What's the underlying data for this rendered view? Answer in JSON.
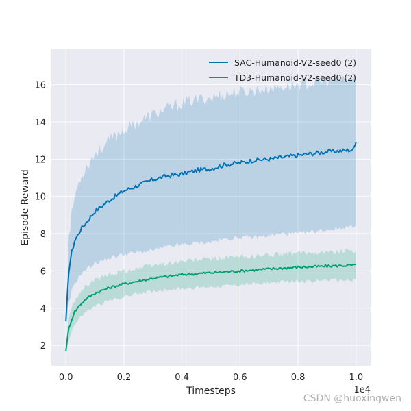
{
  "chart_data": {
    "type": "line",
    "title": "",
    "xlabel": "Timesteps",
    "ylabel": "Episode Reward",
    "x_offset_label": "1e4",
    "xlim": [
      -0.05,
      1.05
    ],
    "ylim": [
      0.9,
      17.9
    ],
    "xticks": [
      0.0,
      0.2,
      0.4,
      0.6,
      0.8,
      1.0
    ],
    "xtick_labels": [
      "0.0",
      "0.2",
      "0.4",
      "0.6",
      "0.8",
      "1.0"
    ],
    "yticks": [
      2,
      4,
      6,
      8,
      10,
      12,
      14,
      16
    ],
    "ytick_labels": [
      "2",
      "4",
      "6",
      "8",
      "10",
      "12",
      "14",
      "16"
    ],
    "grid": true,
    "legend_position": "top-right",
    "series": [
      {
        "name": "SAC-Humanoid-V2-seed0 (2)",
        "color": "#0072b2",
        "band_color": "#0072b2",
        "x": [
          0.0,
          0.01,
          0.02,
          0.03,
          0.05,
          0.07,
          0.1,
          0.15,
          0.2,
          0.25,
          0.3,
          0.35,
          0.4,
          0.45,
          0.5,
          0.55,
          0.6,
          0.65,
          0.7,
          0.75,
          0.8,
          0.85,
          0.9,
          0.95,
          0.99,
          1.0
        ],
        "y": [
          3.3,
          6.0,
          7.0,
          7.6,
          8.2,
          8.6,
          9.2,
          9.8,
          10.3,
          10.6,
          10.9,
          11.1,
          11.2,
          11.4,
          11.5,
          11.7,
          11.8,
          11.95,
          12.0,
          12.1,
          12.2,
          12.3,
          12.4,
          12.45,
          12.5,
          12.9
        ],
        "lower": [
          2.9,
          4.2,
          4.9,
          5.3,
          5.8,
          6.1,
          6.4,
          6.7,
          6.9,
          7.0,
          7.1,
          7.3,
          7.4,
          7.5,
          7.55,
          7.7,
          7.8,
          7.8,
          7.9,
          8.0,
          8.0,
          8.1,
          8.2,
          8.3,
          8.4,
          8.5
        ],
        "upper": [
          3.7,
          7.8,
          9.0,
          10.0,
          11.0,
          11.6,
          12.3,
          13.0,
          13.6,
          14.0,
          14.4,
          14.7,
          15.0,
          15.2,
          15.3,
          15.5,
          15.6,
          15.7,
          15.8,
          15.9,
          16.0,
          16.1,
          16.2,
          16.3,
          16.3,
          16.4
        ]
      },
      {
        "name": "TD3-Humanoid-V2-seed0 (2)",
        "color": "#009e73",
        "band_color": "#009e73",
        "x": [
          0.0,
          0.01,
          0.02,
          0.03,
          0.05,
          0.07,
          0.1,
          0.15,
          0.2,
          0.25,
          0.3,
          0.35,
          0.4,
          0.45,
          0.5,
          0.55,
          0.6,
          0.65,
          0.7,
          0.75,
          0.8,
          0.85,
          0.9,
          0.95,
          0.99,
          1.0
        ],
        "y": [
          1.7,
          2.9,
          3.4,
          3.8,
          4.2,
          4.5,
          4.8,
          5.1,
          5.3,
          5.45,
          5.6,
          5.7,
          5.8,
          5.85,
          5.9,
          5.95,
          6.0,
          6.05,
          6.1,
          6.15,
          6.2,
          6.22,
          6.25,
          6.28,
          6.3,
          6.35
        ],
        "lower": [
          1.5,
          2.3,
          2.8,
          3.1,
          3.5,
          3.8,
          4.1,
          4.4,
          4.6,
          4.8,
          4.9,
          5.0,
          5.05,
          5.1,
          5.15,
          5.2,
          5.25,
          5.3,
          5.35,
          5.4,
          5.45,
          5.45,
          5.5,
          5.5,
          5.5,
          5.55
        ],
        "upper": [
          1.9,
          3.5,
          4.0,
          4.4,
          4.9,
          5.2,
          5.5,
          5.8,
          6.0,
          6.15,
          6.3,
          6.4,
          6.5,
          6.6,
          6.65,
          6.7,
          6.75,
          6.8,
          6.85,
          6.9,
          6.95,
          7.0,
          7.0,
          7.05,
          7.1,
          7.15
        ]
      }
    ]
  },
  "watermark": "CSDN @huoxingwen"
}
